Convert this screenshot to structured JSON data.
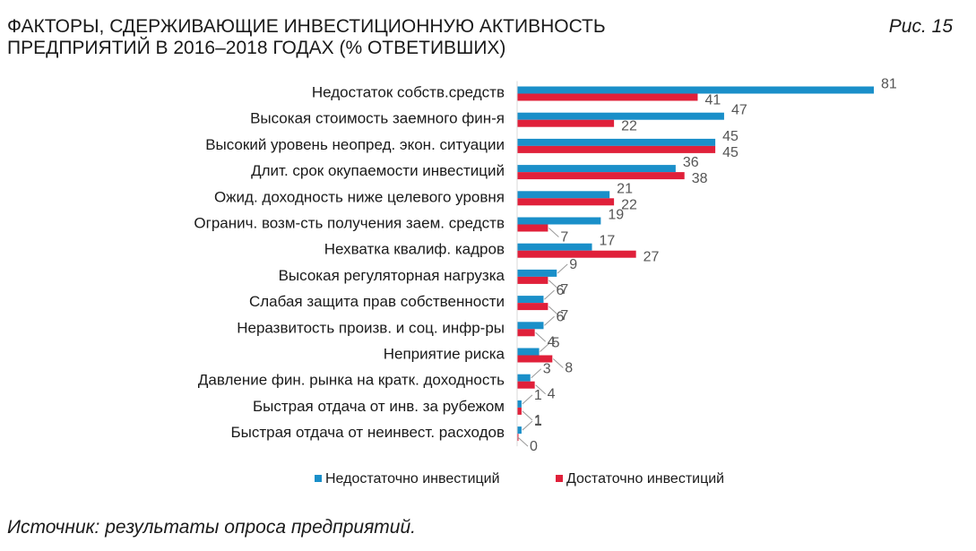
{
  "figure": {
    "title_line1": "ФАКТОРЫ, СДЕРЖИВАЮЩИЕ ИНВЕСТИЦИОННУЮ АКТИВНОСТЬ",
    "title_line2": "ПРЕДПРИЯТИЙ В 2016–2018 ГОДАХ (% ОТВЕТИВШИХ)",
    "label": "Рис. 15",
    "source": "Источник: результаты опроса предприятий."
  },
  "chart_data": {
    "type": "bar",
    "orientation": "horizontal",
    "title": "ФАКТОРЫ, СДЕРЖИВАЮЩИЕ ИНВЕСТИЦИОННУЮ АКТИВНОСТЬ ПРЕДПРИЯТИЙ В 2016–2018 ГОДАХ (% ОТВЕТИВШИХ)",
    "xlabel": "",
    "ylabel": "",
    "xlim": [
      0,
      81
    ],
    "grid": false,
    "legend_position": "bottom",
    "categories": [
      "Недостаток собств.средств",
      "Высокая стоимость заемного фин-я",
      "Высокий уровень неопред. экон. ситуации",
      "Длит. срок окупаемости инвестиций",
      "Ожид. доходность ниже целевого уровня",
      "Огранич. возм-сть  получения заем. средств",
      "Нехватка квалиф. кадров",
      "Высокая регуляторная нагрузка",
      "Слабая защита прав собственности",
      "Неразвитость произв. и соц. инфр-ры",
      "Неприятие риска",
      "Давление фин. рынка на кратк. доходность",
      "Быстрая отдача от инв. за рубежом",
      "Быстрая отдача от неинвест. расходов"
    ],
    "series": [
      {
        "name": "Недостаточно инвестиций",
        "color": "#1A8FC9",
        "values": [
          81,
          47,
          45,
          36,
          21,
          19,
          17,
          9,
          6,
          6,
          5,
          3,
          1,
          1
        ]
      },
      {
        "name": "Достаточно инвестиций",
        "color": "#E0203A",
        "values": [
          41,
          22,
          45,
          38,
          22,
          7,
          27,
          7,
          7,
          4,
          8,
          4,
          1,
          0
        ]
      }
    ]
  }
}
